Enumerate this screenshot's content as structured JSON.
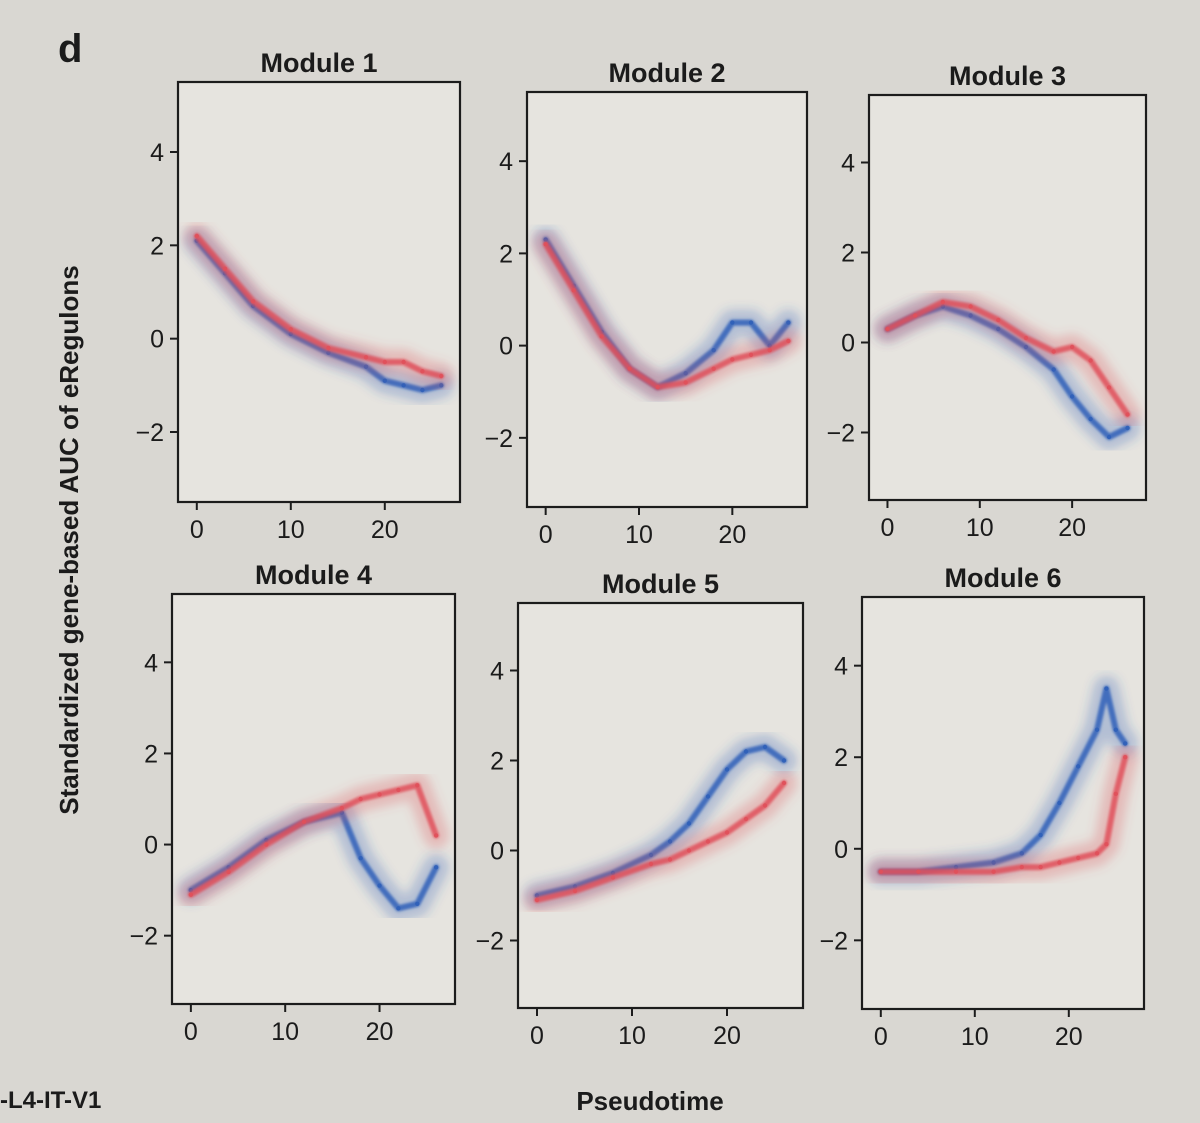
{
  "figure": {
    "panel_letter": "d",
    "ylabel": "Standardized gene-based AUC of eRegulons",
    "xlabel": "Pseudotime",
    "side_label": "-L4-IT-V1"
  },
  "colors": {
    "blue_series": "#2f5fb8",
    "red_series": "#e0505a",
    "background": "#d9d7d2",
    "plot_background": "#e6e4df"
  },
  "chart_data": [
    {
      "type": "line",
      "title": "Module 1",
      "xlim": [
        -2,
        28
      ],
      "ylim": [
        -3.5,
        5.5
      ],
      "xticks": [
        0,
        10,
        20
      ],
      "yticks": [
        -2,
        0,
        2,
        4
      ],
      "xlabel": "Pseudotime",
      "ylabel": "Standardized gene-based AUC of eRegulons",
      "series": [
        {
          "name": "blue",
          "x": [
            0,
            3,
            6,
            10,
            14,
            18,
            20,
            22,
            24,
            26
          ],
          "y": [
            2.1,
            1.4,
            0.7,
            0.1,
            -0.3,
            -0.6,
            -0.9,
            -1.0,
            -1.1,
            -1.0
          ]
        },
        {
          "name": "red",
          "x": [
            0,
            3,
            6,
            10,
            14,
            18,
            20,
            22,
            24,
            26
          ],
          "y": [
            2.2,
            1.5,
            0.8,
            0.2,
            -0.2,
            -0.4,
            -0.5,
            -0.5,
            -0.7,
            -0.8
          ]
        }
      ]
    },
    {
      "type": "line",
      "title": "Module 2",
      "xlim": [
        -2,
        28
      ],
      "ylim": [
        -3.5,
        5.5
      ],
      "xticks": [
        0,
        10,
        20
      ],
      "yticks": [
        -2,
        0,
        2,
        4
      ],
      "xlabel": "Pseudotime",
      "ylabel": "Standardized gene-based AUC of eRegulons",
      "series": [
        {
          "name": "blue",
          "x": [
            0,
            3,
            6,
            9,
            12,
            15,
            18,
            20,
            22,
            24,
            26
          ],
          "y": [
            2.3,
            1.3,
            0.3,
            -0.5,
            -0.9,
            -0.6,
            -0.1,
            0.5,
            0.5,
            0.0,
            0.5
          ]
        },
        {
          "name": "red",
          "x": [
            0,
            3,
            6,
            9,
            12,
            15,
            18,
            20,
            22,
            24,
            26
          ],
          "y": [
            2.2,
            1.2,
            0.2,
            -0.5,
            -0.9,
            -0.8,
            -0.5,
            -0.3,
            -0.2,
            -0.1,
            0.1
          ]
        }
      ]
    },
    {
      "type": "line",
      "title": "Module 3",
      "xlim": [
        -2,
        28
      ],
      "ylim": [
        -3.5,
        5.5
      ],
      "xticks": [
        0,
        10,
        20
      ],
      "yticks": [
        -2,
        0,
        2,
        4
      ],
      "xlabel": "Pseudotime",
      "ylabel": "Standardized gene-based AUC of eRegulons",
      "series": [
        {
          "name": "blue",
          "x": [
            0,
            3,
            6,
            9,
            12,
            15,
            18,
            20,
            22,
            24,
            26
          ],
          "y": [
            0.3,
            0.6,
            0.8,
            0.6,
            0.3,
            -0.1,
            -0.6,
            -1.2,
            -1.7,
            -2.1,
            -1.9
          ]
        },
        {
          "name": "red",
          "x": [
            0,
            3,
            6,
            9,
            12,
            15,
            18,
            20,
            22,
            24,
            26
          ],
          "y": [
            0.3,
            0.6,
            0.9,
            0.8,
            0.5,
            0.1,
            -0.2,
            -0.1,
            -0.4,
            -1.0,
            -1.6
          ]
        }
      ]
    },
    {
      "type": "line",
      "title": "Module 4",
      "xlim": [
        -2,
        28
      ],
      "ylim": [
        -3.5,
        5.5
      ],
      "xticks": [
        0,
        10,
        20
      ],
      "yticks": [
        -2,
        0,
        2,
        4
      ],
      "xlabel": "Pseudotime",
      "ylabel": "Standardized gene-based AUC of eRegulons",
      "series": [
        {
          "name": "blue",
          "x": [
            0,
            4,
            8,
            12,
            16,
            18,
            20,
            22,
            24,
            26
          ],
          "y": [
            -1.0,
            -0.5,
            0.1,
            0.5,
            0.7,
            -0.3,
            -0.9,
            -1.4,
            -1.3,
            -0.5
          ]
        },
        {
          "name": "red",
          "x": [
            0,
            4,
            8,
            12,
            16,
            18,
            20,
            22,
            24,
            26
          ],
          "y": [
            -1.1,
            -0.6,
            0.0,
            0.5,
            0.8,
            1.0,
            1.1,
            1.2,
            1.3,
            0.2
          ]
        }
      ]
    },
    {
      "type": "line",
      "title": "Module 5",
      "xlim": [
        -2,
        28
      ],
      "ylim": [
        -3.5,
        5.5
      ],
      "xticks": [
        0,
        10,
        20
      ],
      "yticks": [
        -2,
        0,
        2,
        4
      ],
      "xlabel": "Pseudotime",
      "ylabel": "Standardized gene-based AUC of eRegulons",
      "series": [
        {
          "name": "blue",
          "x": [
            0,
            4,
            8,
            12,
            14,
            16,
            18,
            20,
            22,
            24,
            26
          ],
          "y": [
            -1.0,
            -0.8,
            -0.5,
            -0.1,
            0.2,
            0.6,
            1.2,
            1.8,
            2.2,
            2.3,
            2.0
          ]
        },
        {
          "name": "red",
          "x": [
            0,
            4,
            8,
            12,
            14,
            16,
            18,
            20,
            22,
            24,
            26
          ],
          "y": [
            -1.1,
            -0.9,
            -0.6,
            -0.3,
            -0.2,
            0.0,
            0.2,
            0.4,
            0.7,
            1.0,
            1.5
          ]
        }
      ]
    },
    {
      "type": "line",
      "title": "Module 6",
      "xlim": [
        -2,
        28
      ],
      "ylim": [
        -3.5,
        5.5
      ],
      "xticks": [
        0,
        10,
        20
      ],
      "yticks": [
        -2,
        0,
        2,
        4
      ],
      "xlabel": "Pseudotime",
      "ylabel": "Standardized gene-based AUC of eRegulons",
      "series": [
        {
          "name": "blue",
          "x": [
            0,
            4,
            8,
            12,
            15,
            17,
            19,
            21,
            23,
            24,
            25,
            26
          ],
          "y": [
            -0.5,
            -0.5,
            -0.4,
            -0.3,
            -0.1,
            0.3,
            1.0,
            1.8,
            2.6,
            3.5,
            2.6,
            2.3
          ]
        },
        {
          "name": "red",
          "x": [
            0,
            4,
            8,
            12,
            15,
            17,
            19,
            21,
            23,
            24,
            25,
            26
          ],
          "y": [
            -0.5,
            -0.5,
            -0.5,
            -0.5,
            -0.4,
            -0.4,
            -0.3,
            -0.2,
            -0.1,
            0.1,
            1.2,
            2.0
          ]
        }
      ]
    }
  ]
}
